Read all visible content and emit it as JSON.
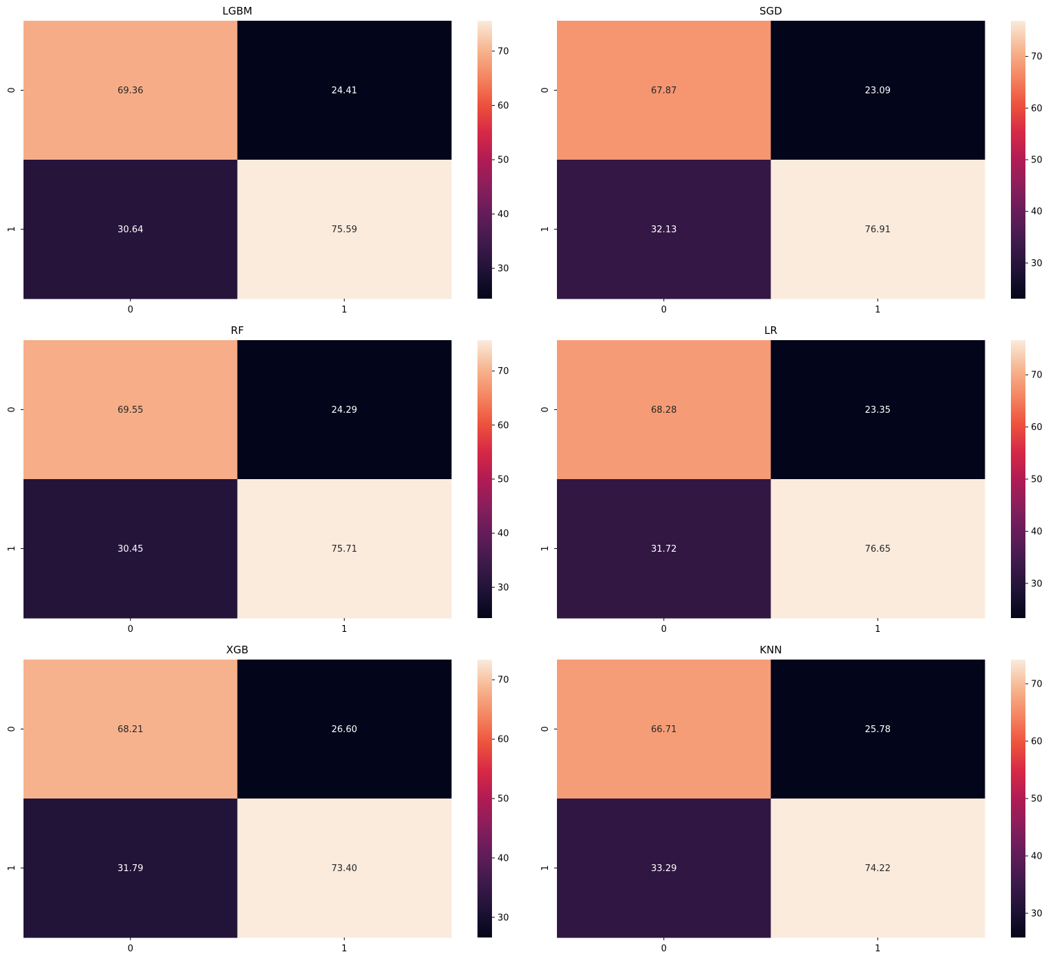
{
  "chart_data": [
    {
      "type": "heatmap",
      "title": "LGBM",
      "row_labels": [
        "0",
        "1"
      ],
      "col_labels": [
        "0",
        "1"
      ],
      "values": [
        [
          69.36,
          24.41
        ],
        [
          30.64,
          75.59
        ]
      ],
      "cell_text": [
        [
          "69.36",
          "24.41"
        ],
        [
          "30.64",
          "75.59"
        ]
      ],
      "colorbar": {
        "ticks": [
          "30",
          "40",
          "50",
          "60",
          "70"
        ],
        "tick_values": [
          30,
          40,
          50,
          60,
          70
        ]
      },
      "colormap": "rocket"
    },
    {
      "type": "heatmap",
      "title": "SGD",
      "row_labels": [
        "0",
        "1"
      ],
      "col_labels": [
        "0",
        "1"
      ],
      "values": [
        [
          67.87,
          23.09
        ],
        [
          32.13,
          76.91
        ]
      ],
      "cell_text": [
        [
          "67.87",
          "23.09"
        ],
        [
          "32.13",
          "76.91"
        ]
      ],
      "colorbar": {
        "ticks": [
          "30",
          "40",
          "50",
          "60",
          "70"
        ],
        "tick_values": [
          30,
          40,
          50,
          60,
          70
        ]
      },
      "colormap": "rocket"
    },
    {
      "type": "heatmap",
      "title": "RF",
      "row_labels": [
        "0",
        "1"
      ],
      "col_labels": [
        "0",
        "1"
      ],
      "values": [
        [
          69.55,
          24.29
        ],
        [
          30.45,
          75.71
        ]
      ],
      "cell_text": [
        [
          "69.55",
          "24.29"
        ],
        [
          "30.45",
          "75.71"
        ]
      ],
      "colorbar": {
        "ticks": [
          "30",
          "40",
          "50",
          "60",
          "70"
        ],
        "tick_values": [
          30,
          40,
          50,
          60,
          70
        ]
      },
      "colormap": "rocket"
    },
    {
      "type": "heatmap",
      "title": "LR",
      "row_labels": [
        "0",
        "1"
      ],
      "col_labels": [
        "0",
        "1"
      ],
      "values": [
        [
          68.28,
          23.35
        ],
        [
          31.72,
          76.65
        ]
      ],
      "cell_text": [
        [
          "68.28",
          "23.35"
        ],
        [
          "31.72",
          "76.65"
        ]
      ],
      "colorbar": {
        "ticks": [
          "30",
          "40",
          "50",
          "60",
          "70"
        ],
        "tick_values": [
          30,
          40,
          50,
          60,
          70
        ]
      },
      "colormap": "rocket"
    },
    {
      "type": "heatmap",
      "title": "XGB",
      "row_labels": [
        "0",
        "1"
      ],
      "col_labels": [
        "0",
        "1"
      ],
      "values": [
        [
          68.21,
          26.6
        ],
        [
          31.79,
          73.4
        ]
      ],
      "cell_text": [
        [
          "68.21",
          "26.60"
        ],
        [
          "31.79",
          "73.40"
        ]
      ],
      "colorbar": {
        "ticks": [
          "30",
          "40",
          "50",
          "60",
          "70"
        ],
        "tick_values": [
          30,
          40,
          50,
          60,
          70
        ]
      },
      "colormap": "rocket"
    },
    {
      "type": "heatmap",
      "title": "KNN",
      "row_labels": [
        "0",
        "1"
      ],
      "col_labels": [
        "0",
        "1"
      ],
      "values": [
        [
          66.71,
          25.78
        ],
        [
          33.29,
          74.22
        ]
      ],
      "cell_text": [
        [
          "66.71",
          "25.78"
        ],
        [
          "33.29",
          "74.22"
        ]
      ],
      "colorbar": {
        "ticks": [
          "30",
          "40",
          "50",
          "60",
          "70"
        ],
        "tick_values": [
          30,
          40,
          50,
          60,
          70
        ]
      },
      "colormap": "rocket"
    }
  ]
}
